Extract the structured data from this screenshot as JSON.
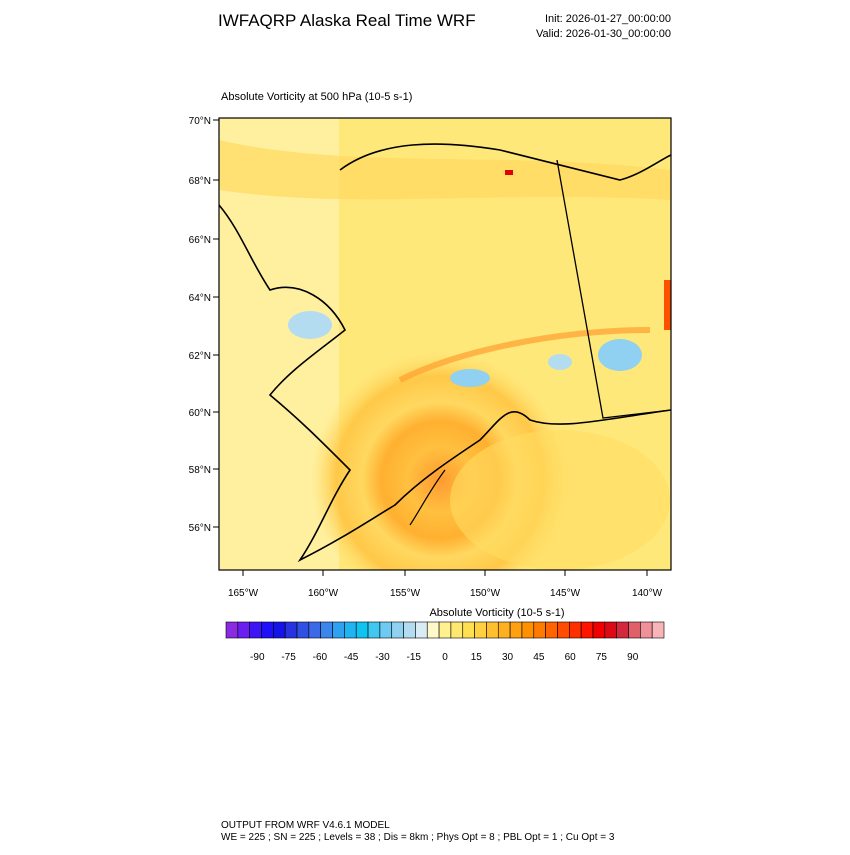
{
  "header": {
    "title": "IWFAQRP Alaska Real Time WRF",
    "init": "Init: 2026-01-27_00:00:00",
    "valid": "Valid: 2026-01-30_00:00:00"
  },
  "map": {
    "title": "Absolute Vorticity at 500 hPa   (10-5 s-1)",
    "lat_labels": [
      "70°N",
      "68°N",
      "66°N",
      "64°N",
      "62°N",
      "60°N",
      "58°N",
      "56°N"
    ],
    "lon_labels": [
      "165°W",
      "160°W",
      "155°W",
      "150°W",
      "145°W",
      "140°W"
    ]
  },
  "colorbar": {
    "title": "Absolute Vorticity  (10-5 s-1)",
    "range": [
      -105,
      105
    ],
    "ticks": [
      -90,
      -75,
      -60,
      -45,
      -30,
      -15,
      0,
      15,
      30,
      45,
      60,
      75,
      90
    ],
    "colors": [
      "#8a2be2",
      "#6a1ef0",
      "#3c14f5",
      "#1e10f8",
      "#1414e6",
      "#2832e0",
      "#3050e4",
      "#3a6ae8",
      "#3a86ec",
      "#30a0f0",
      "#20b4f0",
      "#10c4f0",
      "#40c8f0",
      "#6ecaf0",
      "#90d0f0",
      "#b4dcf0",
      "#d8ecf4",
      "#fff8c8",
      "#fff090",
      "#ffe870",
      "#ffe050",
      "#ffd040",
      "#ffc030",
      "#ffb020",
      "#ffa010",
      "#ff9000",
      "#ff7a00",
      "#ff6400",
      "#ff4c00",
      "#ff3000",
      "#ff1400",
      "#f00000",
      "#dc0a14",
      "#d22a3c",
      "#e0606a",
      "#f09098",
      "#f8b4b8"
    ]
  },
  "footer": {
    "line1": "OUTPUT FROM WRF V4.6.1 MODEL",
    "line2": "WE = 225 ; SN = 225 ; Levels = 38 ; Dis = 8km ; Phys Opt = 8 ; PBL Opt = 1 ; Cu Opt = 3"
  }
}
